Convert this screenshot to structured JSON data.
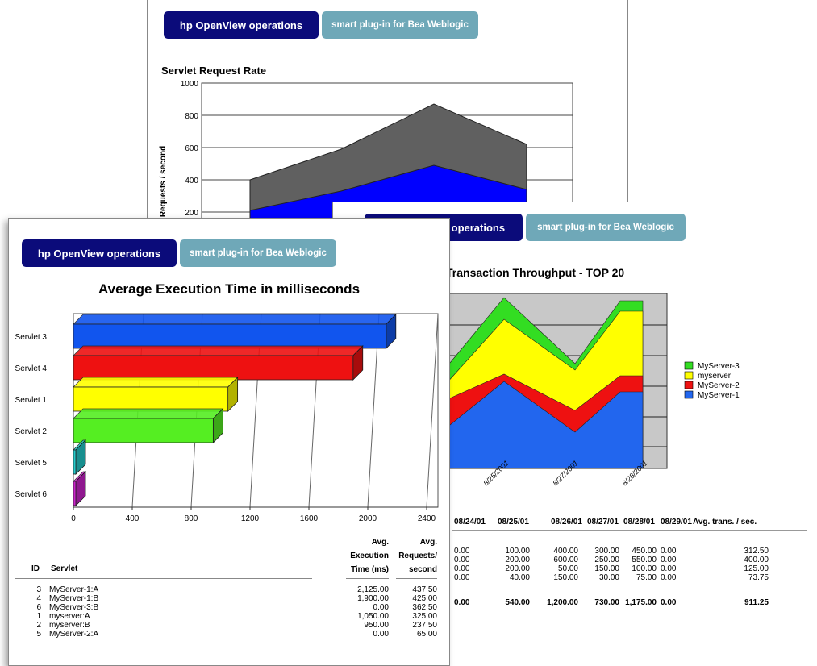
{
  "brand": {
    "hp_label": "hp OpenView operations",
    "spi_label": "smart plug-in for Bea Weblogic"
  },
  "colors": {
    "brand_dark": "#0b0b7a",
    "brand_teal": "#6fa8b8"
  },
  "chart_data": [
    {
      "type": "area",
      "title": "Servlet Request Rate",
      "ylabel": "Requests / second",
      "ylim": [
        0,
        1000
      ],
      "yticks": [
        "1000",
        "800",
        "600",
        "400",
        "200"
      ],
      "series": [
        {
          "values": [
            400,
            590,
            870,
            620
          ],
          "color": "#606060"
        },
        {
          "values": [
            210,
            330,
            490,
            340
          ],
          "color": "#0000ff"
        }
      ]
    },
    {
      "type": "area",
      "title": "Transaction Throughput - TOP 20",
      "categories": [
        "8/25/2001",
        "8/27/2001",
        "8/28/2001"
      ],
      "legend_position": "right",
      "series": [
        {
          "name": "MyServer-3",
          "color": "#33dd22"
        },
        {
          "name": "myserver",
          "color": "#ffff00"
        },
        {
          "name": "MyServer-2",
          "color": "#ee1111"
        },
        {
          "name": "MyServer-1",
          "color": "#2266ee"
        }
      ]
    },
    {
      "type": "bar",
      "orientation": "horizontal",
      "title": "Average Execution Time in milliseconds",
      "categories": [
        "Servlet 3",
        "Servlet 4",
        "Servlet 1",
        "Servlet 2",
        "Servlet 5",
        "Servlet 6"
      ],
      "values": [
        2125,
        1900,
        1050,
        950,
        0,
        0
      ],
      "colors": [
        "#1155ee",
        "#ee1111",
        "#ffff00",
        "#55ee22",
        "#22cccc",
        "#cc22cc"
      ],
      "xlim": [
        0,
        2400
      ],
      "xticks": [
        "0",
        "400",
        "800",
        "1200",
        "1600",
        "2000",
        "2400"
      ]
    }
  ],
  "throughput_table": {
    "headers": [
      "08/24/01",
      "08/25/01",
      "08/26/01",
      "08/27/01",
      "08/28/01",
      "08/29/01",
      "Avg. trans. / sec."
    ],
    "rows": [
      [
        "0.00",
        "100.00",
        "400.00",
        "300.00",
        "450.00",
        "0.00",
        "312.50"
      ],
      [
        "0.00",
        "200.00",
        "600.00",
        "250.00",
        "550.00",
        "0.00",
        "400.00"
      ],
      [
        "0.00",
        "200.00",
        "50.00",
        "150.00",
        "100.00",
        "0.00",
        "125.00"
      ],
      [
        "0.00",
        "40.00",
        "150.00",
        "30.00",
        "75.00",
        "0.00",
        "73.75"
      ]
    ],
    "totals": [
      "0.00",
      "540.00",
      "1,200.00",
      "730.00",
      "1,175.00",
      "0.00",
      "911.25"
    ]
  },
  "exec_table": {
    "col_id": "ID",
    "col_servlet": "Servlet",
    "col_exec_1": "Avg.",
    "col_exec_2": "Execution",
    "col_exec_3": "Time (ms)",
    "col_req_1": "Avg.",
    "col_req_2": "Requests/",
    "col_req_3": "second",
    "rows": [
      {
        "id": "3",
        "servlet": "MyServer-1:A",
        "exec": "2,125.00",
        "req": "437.50"
      },
      {
        "id": "4",
        "servlet": "MyServer-1:B",
        "exec": "1,900.00",
        "req": "425.00"
      },
      {
        "id": "6",
        "servlet": "MyServer-3:B",
        "exec": "0.00",
        "req": "362.50"
      },
      {
        "id": "1",
        "servlet": "myserver:A",
        "exec": "1,050.00",
        "req": "325.00"
      },
      {
        "id": "2",
        "servlet": "myserver:B",
        "exec": "950.00",
        "req": "237.50"
      },
      {
        "id": "5",
        "servlet": "MyServer-2:A",
        "exec": "0.00",
        "req": "65.00"
      }
    ]
  }
}
